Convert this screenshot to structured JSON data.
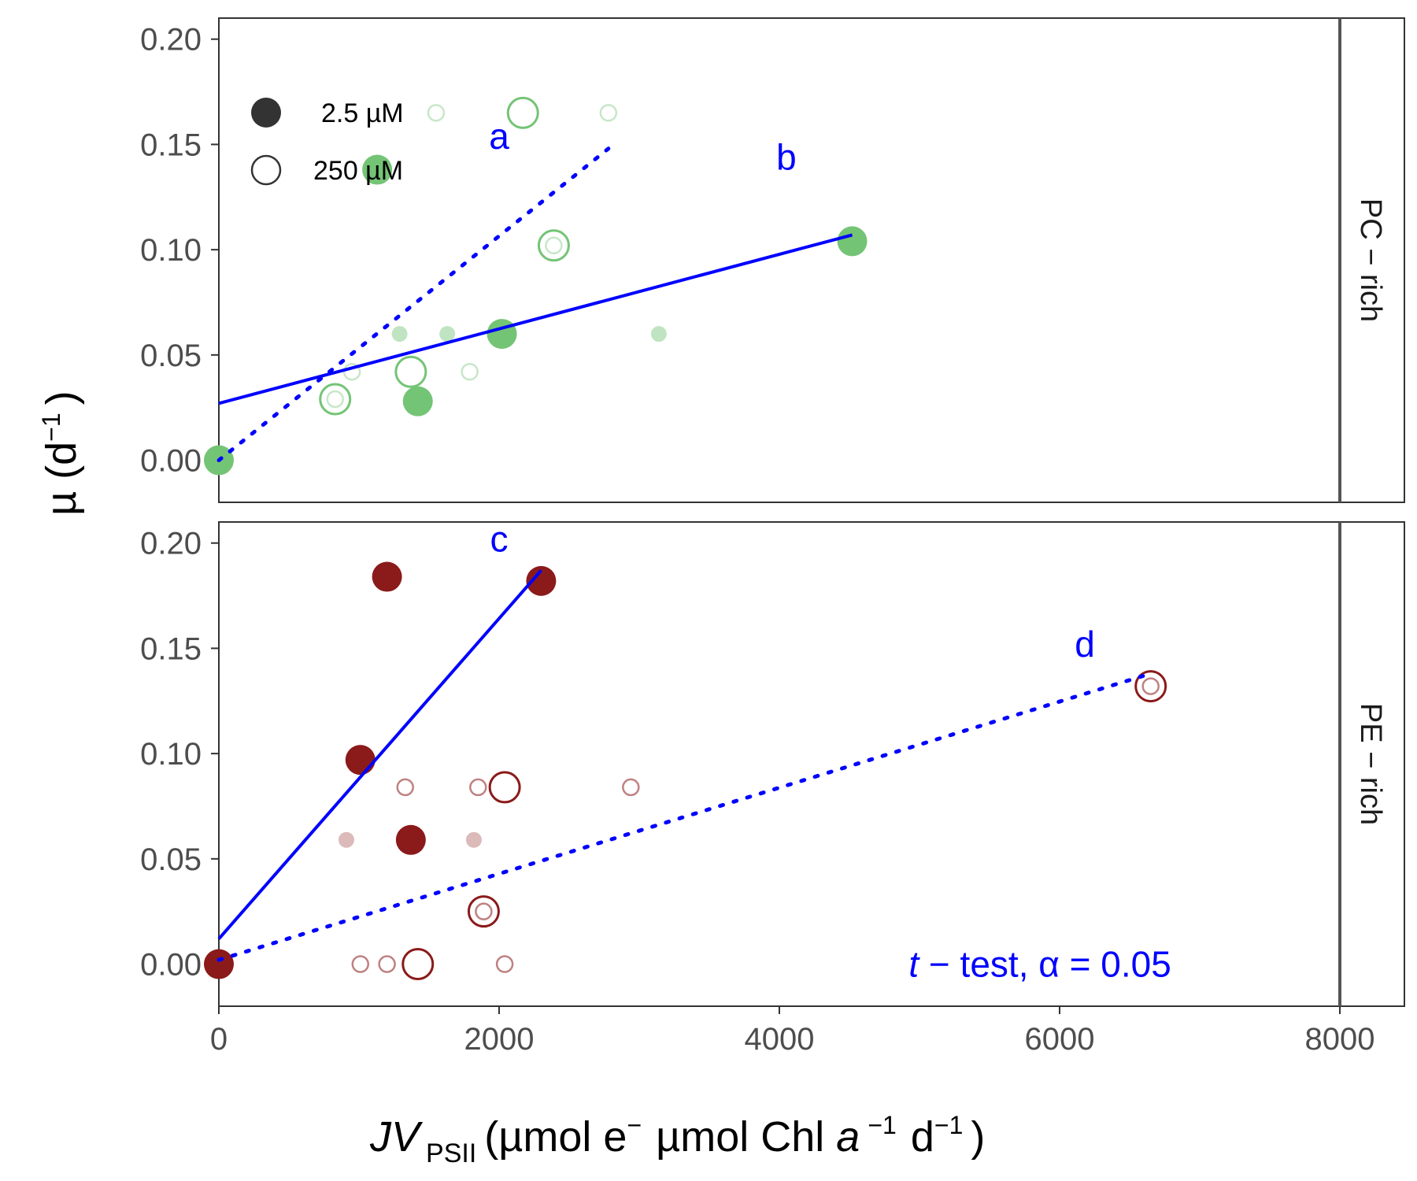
{
  "chart_data": {
    "type": "scatter",
    "xlabel": {
      "italic": "JV",
      "sub": "PSII",
      "units": "(µmol e",
      "sup1": "−",
      "mid": "µmol Chl ",
      "italic2": "a",
      "sup2": "−1",
      "end": "d",
      "sup3": "−1",
      "close": ")"
    },
    "ylabel": {
      "main": "µ (d",
      "sup": "−1",
      "close": ")"
    },
    "xlim": [
      0,
      8000
    ],
    "ylim": [
      -0.02,
      0.21
    ],
    "x_ticks": [
      "0",
      "2000",
      "4000",
      "6000",
      "8000"
    ],
    "y_ticks": [
      "0.00",
      "0.05",
      "0.10",
      "0.15",
      "0.20"
    ],
    "legend": {
      "placement": "top-left",
      "entries": [
        {
          "label": "2.5 µM",
          "shape": "filled-circle"
        },
        {
          "label": "250 µM",
          "shape": "open-circle"
        }
      ]
    },
    "panels": [
      {
        "strip": "PC − rich",
        "color": "#74c476",
        "points": [
          {
            "x": 0,
            "y": 0.0,
            "filled": true,
            "size": "large",
            "alpha": 1
          },
          {
            "x": 1420,
            "y": 0.028,
            "filled": true,
            "size": "large",
            "alpha": 1
          },
          {
            "x": 2020,
            "y": 0.06,
            "filled": true,
            "size": "large",
            "alpha": 1
          },
          {
            "x": 4520,
            "y": 0.104,
            "filled": true,
            "size": "large",
            "alpha": 1
          },
          {
            "x": 1130,
            "y": 0.138,
            "filled": true,
            "size": "large",
            "alpha": 1
          },
          {
            "x": 1290,
            "y": 0.06,
            "filled": true,
            "size": "small",
            "alpha": 0.45
          },
          {
            "x": 1630,
            "y": 0.06,
            "filled": true,
            "size": "small",
            "alpha": 0.45
          },
          {
            "x": 3140,
            "y": 0.06,
            "filled": true,
            "size": "small",
            "alpha": 0.45
          },
          {
            "x": 830,
            "y": 0.029,
            "filled": false,
            "size": "large",
            "alpha": 1
          },
          {
            "x": 1370,
            "y": 0.042,
            "filled": false,
            "size": "large",
            "alpha": 1
          },
          {
            "x": 2390,
            "y": 0.102,
            "filled": false,
            "size": "large",
            "alpha": 1
          },
          {
            "x": 2170,
            "y": 0.165,
            "filled": false,
            "size": "large",
            "alpha": 1
          },
          {
            "x": 830,
            "y": 0.029,
            "filled": false,
            "size": "small",
            "alpha": 0.4
          },
          {
            "x": 950,
            "y": 0.042,
            "filled": false,
            "size": "small",
            "alpha": 0.4
          },
          {
            "x": 1790,
            "y": 0.042,
            "filled": false,
            "size": "small",
            "alpha": 0.4
          },
          {
            "x": 2390,
            "y": 0.102,
            "filled": false,
            "size": "small",
            "alpha": 0.4
          },
          {
            "x": 1550,
            "y": 0.165,
            "filled": false,
            "size": "small",
            "alpha": 0.4
          },
          {
            "x": 2780,
            "y": 0.165,
            "filled": false,
            "size": "small",
            "alpha": 0.4
          }
        ],
        "lines": [
          {
            "label": "a",
            "style": "dotted",
            "x": [
              0,
              2780
            ],
            "y": [
              0.0,
              0.148
            ],
            "label_x": 2000,
            "label_y": 0.148
          },
          {
            "label": "b",
            "style": "solid",
            "x": [
              0,
              4520
            ],
            "y": [
              0.027,
              0.107
            ],
            "label_x": 4050,
            "label_y": 0.138
          }
        ]
      },
      {
        "strip": "PE − rich",
        "color": "#8b1a1a",
        "points": [
          {
            "x": 0,
            "y": 0.0,
            "filled": true,
            "size": "large",
            "alpha": 1
          },
          {
            "x": 1010,
            "y": 0.097,
            "filled": true,
            "size": "large",
            "alpha": 1
          },
          {
            "x": 1370,
            "y": 0.059,
            "filled": true,
            "size": "large",
            "alpha": 1
          },
          {
            "x": 1200,
            "y": 0.184,
            "filled": true,
            "size": "large",
            "alpha": 1
          },
          {
            "x": 2300,
            "y": 0.182,
            "filled": true,
            "size": "large",
            "alpha": 1
          },
          {
            "x": 910,
            "y": 0.059,
            "filled": true,
            "size": "small",
            "alpha": 0.3
          },
          {
            "x": 1820,
            "y": 0.059,
            "filled": true,
            "size": "small",
            "alpha": 0.3
          },
          {
            "x": 1420,
            "y": 0.0,
            "filled": false,
            "size": "large",
            "alpha": 1
          },
          {
            "x": 1890,
            "y": 0.025,
            "filled": false,
            "size": "large",
            "alpha": 1
          },
          {
            "x": 2040,
            "y": 0.084,
            "filled": false,
            "size": "large",
            "alpha": 1
          },
          {
            "x": 6650,
            "y": 0.132,
            "filled": false,
            "size": "large",
            "alpha": 1
          },
          {
            "x": 1010,
            "y": 0.0,
            "filled": false,
            "size": "small",
            "alpha": 0.55
          },
          {
            "x": 1200,
            "y": 0.0,
            "filled": false,
            "size": "small",
            "alpha": 0.55
          },
          {
            "x": 2040,
            "y": 0.0,
            "filled": false,
            "size": "small",
            "alpha": 0.55
          },
          {
            "x": 1890,
            "y": 0.025,
            "filled": false,
            "size": "small",
            "alpha": 0.55
          },
          {
            "x": 1330,
            "y": 0.084,
            "filled": false,
            "size": "small",
            "alpha": 0.55
          },
          {
            "x": 1850,
            "y": 0.084,
            "filled": false,
            "size": "small",
            "alpha": 0.55
          },
          {
            "x": 2940,
            "y": 0.084,
            "filled": false,
            "size": "small",
            "alpha": 0.55
          },
          {
            "x": 6650,
            "y": 0.132,
            "filled": false,
            "size": "small",
            "alpha": 0.55
          }
        ],
        "lines": [
          {
            "label": "c",
            "style": "solid",
            "x": [
              0,
              2300
            ],
            "y": [
              0.012,
              0.187
            ],
            "label_x": 2000,
            "label_y": 0.196
          },
          {
            "label": "d",
            "style": "dotted",
            "x": [
              0,
              6650
            ],
            "y": [
              0.002,
              0.138
            ],
            "label_x": 6180,
            "label_y": 0.146
          }
        ]
      }
    ],
    "annotation": {
      "italic": "t",
      "text": " − test, α = 0.05",
      "panel": "PE − rich",
      "x": 5860,
      "y": 0.0
    }
  },
  "colors": {
    "regression_line": "#0000ff",
    "panel_border": "#333333"
  }
}
